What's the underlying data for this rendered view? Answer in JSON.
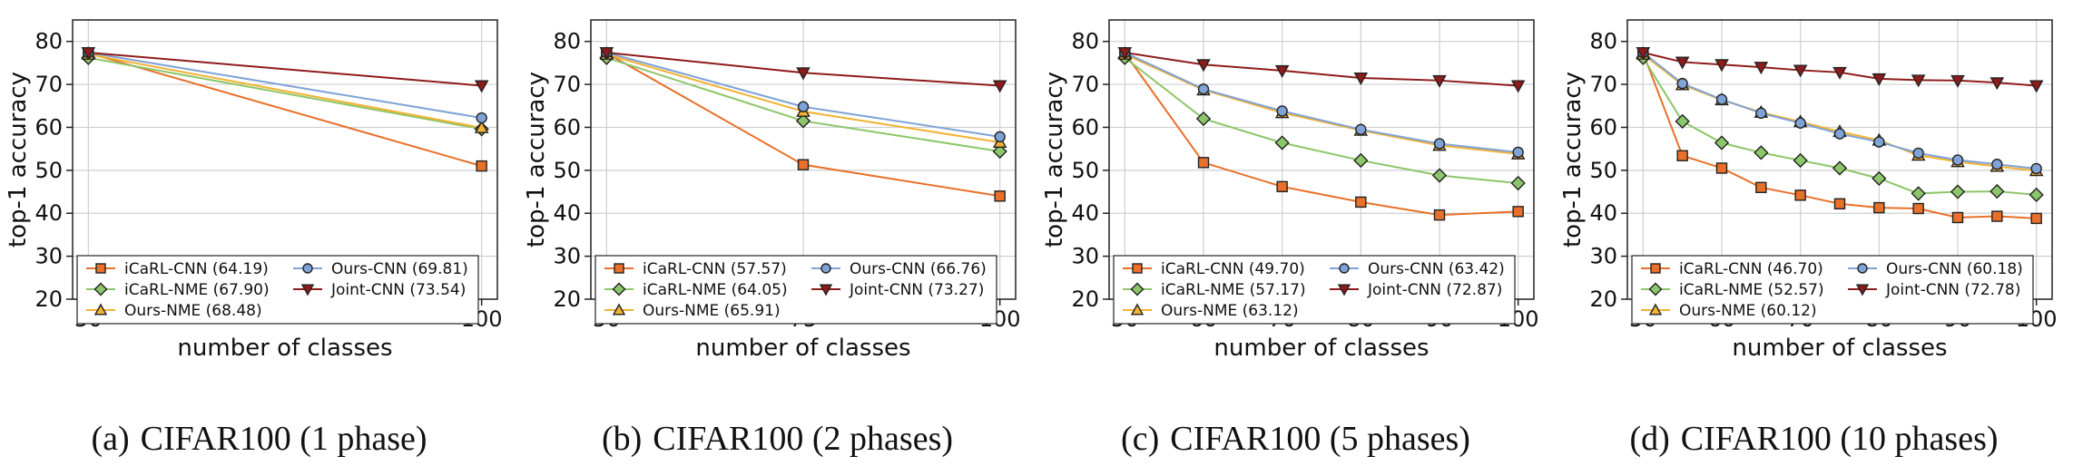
{
  "colors": {
    "icarl_cnn": "#E8702A",
    "icarl_nme": "#8CC66A",
    "ours_nme": "#F2B233",
    "ours_cnn": "#7FA3D6",
    "joint_cnn": "#8E1B1B"
  },
  "chart_data": [
    {
      "type": "line",
      "caption_label": "(a)",
      "caption_text": "CIFAR100 (1 phase)",
      "xlabel": "number of classes",
      "ylabel": "top-1 accuracy",
      "ylim": [
        20,
        85
      ],
      "yticks": [
        20,
        30,
        40,
        50,
        60,
        70,
        80
      ],
      "xlim": [
        48,
        102
      ],
      "xticks": [
        50,
        100
      ],
      "grid": true,
      "legend_placement": "lower-left",
      "series": [
        {
          "key": "icarl_cnn",
          "name": "iCaRL-CNN",
          "score": "(64.19)",
          "marker": "square",
          "x": [
            50,
            100
          ],
          "y": [
            77.3,
            51.0
          ]
        },
        {
          "key": "icarl_nme",
          "name": "iCaRL-NME",
          "score": "(67.90)",
          "marker": "diamond",
          "x": [
            50,
            100
          ],
          "y": [
            76.2,
            59.6
          ]
        },
        {
          "key": "ours_nme",
          "name": "Ours-NME",
          "score": "(68.48)",
          "marker": "triangle-up",
          "x": [
            50,
            100
          ],
          "y": [
            77.0,
            59.9
          ]
        },
        {
          "key": "ours_cnn",
          "name": "Ours-CNN",
          "score": "(69.81)",
          "marker": "circle",
          "x": [
            50,
            100
          ],
          "y": [
            77.4,
            62.2
          ]
        },
        {
          "key": "joint_cnn",
          "name": "Joint-CNN",
          "score": "(73.54)",
          "marker": "triangle-down",
          "x": [
            50,
            100
          ],
          "y": [
            77.4,
            69.7
          ]
        }
      ]
    },
    {
      "type": "line",
      "caption_label": "(b)",
      "caption_text": "CIFAR100 (2 phases)",
      "xlabel": "number of classes",
      "ylabel": "top-1 accuracy",
      "ylim": [
        20,
        85
      ],
      "yticks": [
        20,
        30,
        40,
        50,
        60,
        70,
        80
      ],
      "xlim": [
        48,
        102
      ],
      "xticks": [
        50,
        75,
        100
      ],
      "grid": true,
      "legend_placement": "lower-left",
      "series": [
        {
          "key": "icarl_cnn",
          "name": "iCaRL-CNN",
          "score": "(57.57)",
          "marker": "square",
          "x": [
            50,
            75,
            100
          ],
          "y": [
            77.3,
            51.3,
            44.0
          ]
        },
        {
          "key": "icarl_nme",
          "name": "iCaRL-NME",
          "score": "(64.05)",
          "marker": "diamond",
          "x": [
            50,
            75,
            100
          ],
          "y": [
            76.2,
            61.5,
            54.4
          ]
        },
        {
          "key": "ours_nme",
          "name": "Ours-NME",
          "score": "(65.91)",
          "marker": "triangle-up",
          "x": [
            50,
            75,
            100
          ],
          "y": [
            77.0,
            63.7,
            56.5
          ]
        },
        {
          "key": "ours_cnn",
          "name": "Ours-CNN",
          "score": "(66.76)",
          "marker": "circle",
          "x": [
            50,
            75,
            100
          ],
          "y": [
            77.4,
            64.8,
            57.8
          ]
        },
        {
          "key": "joint_cnn",
          "name": "Joint-CNN",
          "score": "(73.27)",
          "marker": "triangle-down",
          "x": [
            50,
            75,
            100
          ],
          "y": [
            77.4,
            72.7,
            69.7
          ]
        }
      ]
    },
    {
      "type": "line",
      "caption_label": "(c)",
      "caption_text": "CIFAR100 (5 phases)",
      "xlabel": "number of classes",
      "ylabel": "top-1 accuracy",
      "ylim": [
        20,
        85
      ],
      "yticks": [
        20,
        30,
        40,
        50,
        60,
        70,
        80
      ],
      "xlim": [
        48,
        102
      ],
      "xticks": [
        50,
        60,
        70,
        80,
        90,
        100
      ],
      "grid": true,
      "legend_placement": "lower-left",
      "series": [
        {
          "key": "icarl_cnn",
          "name": "iCaRL-CNN",
          "score": "(49.70)",
          "marker": "square",
          "x": [
            50,
            60,
            70,
            80,
            90,
            100
          ],
          "y": [
            77.3,
            51.8,
            46.2,
            42.6,
            39.6,
            40.4
          ]
        },
        {
          "key": "icarl_nme",
          "name": "iCaRL-NME",
          "score": "(57.17)",
          "marker": "diamond",
          "x": [
            50,
            60,
            70,
            80,
            90,
            100
          ],
          "y": [
            76.2,
            62.0,
            56.4,
            52.3,
            48.8,
            47.0
          ]
        },
        {
          "key": "ours_nme",
          "name": "Ours-NME",
          "score": "(63.12)",
          "marker": "triangle-up",
          "x": [
            50,
            60,
            70,
            80,
            90,
            100
          ],
          "y": [
            77.0,
            68.7,
            63.4,
            59.3,
            55.8,
            53.8
          ]
        },
        {
          "key": "ours_cnn",
          "name": "Ours-CNN",
          "score": "(63.42)",
          "marker": "circle",
          "x": [
            50,
            60,
            70,
            80,
            90,
            100
          ],
          "y": [
            77.4,
            68.9,
            63.8,
            59.5,
            56.2,
            54.2
          ]
        },
        {
          "key": "joint_cnn",
          "name": "Joint-CNN",
          "score": "(72.87)",
          "marker": "triangle-down",
          "x": [
            50,
            60,
            70,
            80,
            90,
            100
          ],
          "y": [
            77.4,
            74.6,
            73.2,
            71.5,
            70.9,
            69.7
          ]
        }
      ]
    },
    {
      "type": "line",
      "caption_label": "(d)",
      "caption_text": "CIFAR100 (10 phases)",
      "xlabel": "number of classes",
      "ylabel": "top-1 accuracy",
      "ylim": [
        20,
        85
      ],
      "yticks": [
        20,
        30,
        40,
        50,
        60,
        70,
        80
      ],
      "xlim": [
        48,
        102
      ],
      "xticks": [
        50,
        60,
        70,
        80,
        90,
        100
      ],
      "grid": true,
      "legend_placement": "lower-left",
      "series": [
        {
          "key": "icarl_cnn",
          "name": "iCaRL-CNN",
          "score": "(46.70)",
          "marker": "square",
          "x": [
            50,
            55,
            60,
            65,
            70,
            75,
            80,
            85,
            90,
            95,
            100
          ],
          "y": [
            77.3,
            53.4,
            50.5,
            46.0,
            44.2,
            42.2,
            41.3,
            41.1,
            39.0,
            39.3,
            38.8
          ]
        },
        {
          "key": "icarl_nme",
          "name": "iCaRL-NME",
          "score": "(52.57)",
          "marker": "diamond",
          "x": [
            50,
            55,
            60,
            65,
            70,
            75,
            80,
            85,
            90,
            95,
            100
          ],
          "y": [
            76.2,
            61.4,
            56.4,
            54.1,
            52.3,
            50.5,
            48.1,
            44.6,
            45.0,
            45.1,
            44.3
          ]
        },
        {
          "key": "ours_nme",
          "name": "Ours-NME",
          "score": "(60.12)",
          "marker": "triangle-up",
          "x": [
            50,
            55,
            60,
            65,
            70,
            75,
            80,
            85,
            90,
            95,
            100
          ],
          "y": [
            77.0,
            69.9,
            66.4,
            63.5,
            61.3,
            59.0,
            57.0,
            53.5,
            52.0,
            50.9,
            49.9
          ]
        },
        {
          "key": "ours_cnn",
          "name": "Ours-CNN",
          "score": "(60.18)",
          "marker": "circle",
          "x": [
            50,
            55,
            60,
            65,
            70,
            75,
            80,
            85,
            90,
            95,
            100
          ],
          "y": [
            77.4,
            70.2,
            66.5,
            63.3,
            61.0,
            58.5,
            56.6,
            54.0,
            52.4,
            51.4,
            50.4
          ]
        },
        {
          "key": "joint_cnn",
          "name": "Joint-CNN",
          "score": "(72.78)",
          "marker": "triangle-down",
          "x": [
            50,
            55,
            60,
            65,
            70,
            75,
            80,
            85,
            90,
            95,
            100
          ],
          "y": [
            77.4,
            75.2,
            74.6,
            74.0,
            73.3,
            72.8,
            71.3,
            71.0,
            70.9,
            70.4,
            69.7
          ]
        }
      ]
    }
  ]
}
